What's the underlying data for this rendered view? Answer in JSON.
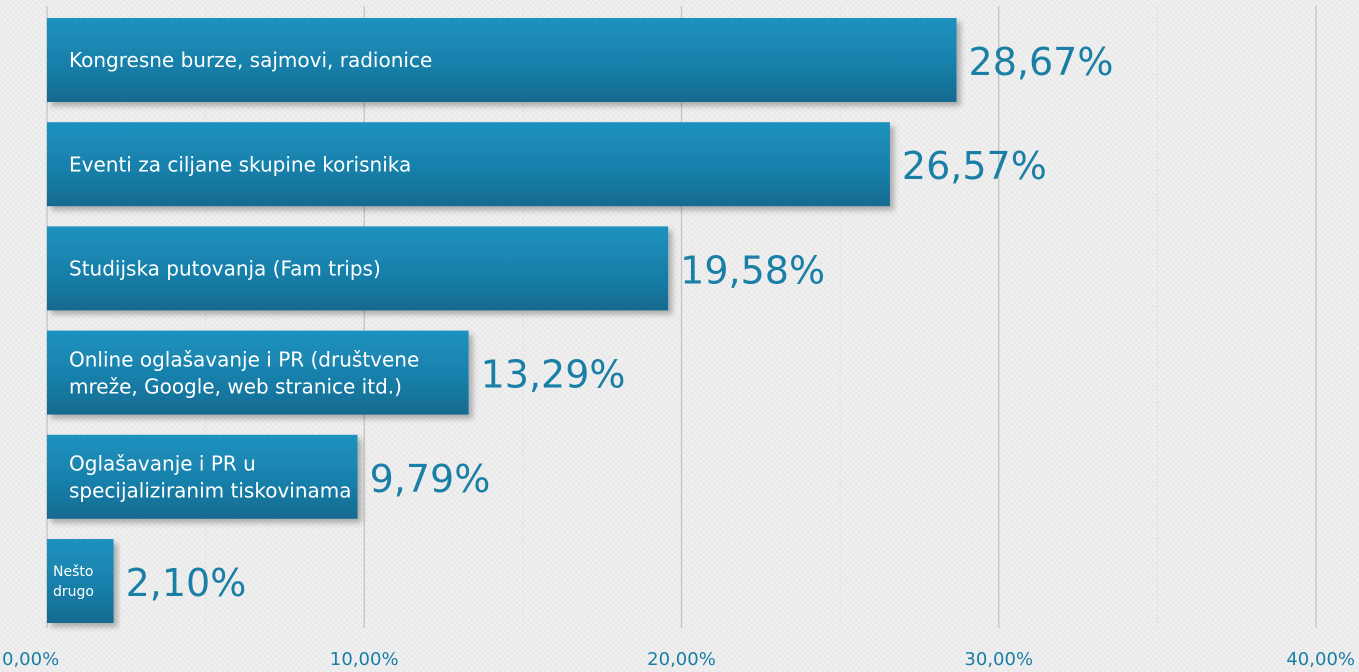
{
  "chart_data": {
    "type": "bar",
    "orientation": "horizontal",
    "categories": [
      "Kongresne burze, sajmovi, radionice",
      "Eventi za ciljane skupine korisnika",
      "Studijska putovanja (Fam trips)",
      "Online oglašavanje i PR (društvene mreže, Google, web stranice itd.)",
      "Oglašavanje i PR u specijaliziranim tiskovinama",
      "Nešto drugo"
    ],
    "category_lines": [
      [
        "Kongresne burze, sajmovi, radionice"
      ],
      [
        "Eventi za ciljane skupine korisnika"
      ],
      [
        "Studijska putovanja (Fam trips)"
      ],
      [
        "Online oglašavanje i PR (društvene",
        "mreže, Google, web stranice itd.)"
      ],
      [
        "Oglašavanje i PR u",
        "specijaliziranim tiskovinama"
      ],
      [
        "Nešto",
        "drugo"
      ]
    ],
    "values": [
      28.67,
      26.57,
      19.58,
      13.29,
      9.79,
      2.1
    ],
    "value_labels": [
      "28,67%",
      "26,57%",
      "19,58%",
      "13,29%",
      "9,79%",
      "2,10%"
    ],
    "xlim": [
      0,
      40
    ],
    "major_ticks": [
      0,
      10,
      20,
      30,
      40
    ],
    "tick_labels": [
      "0,00%",
      "10,00%",
      "20,00%",
      "30,00%",
      "40,00%"
    ],
    "minor_ticks": [
      5,
      15,
      25,
      35
    ],
    "title": "",
    "xlabel": "",
    "ylabel": "",
    "grid": true,
    "legend": "none",
    "colors": {
      "bar_top": "#1d8fbb",
      "bar_bottom": "#136c91",
      "value_text": "#1a7fa6",
      "grid_major": "#c4c4c4",
      "grid_minor": "#cfcfcf"
    }
  }
}
